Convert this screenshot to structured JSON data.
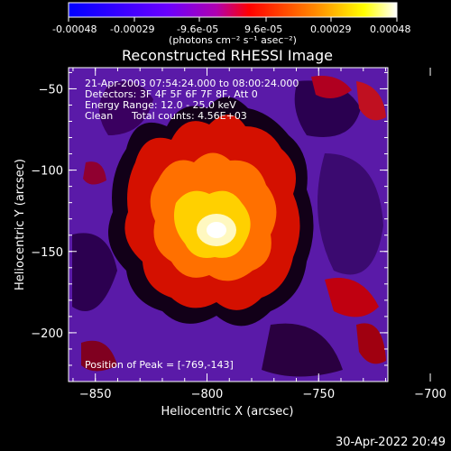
{
  "image": {
    "title": "Reconstructed RHESSI Image",
    "colorbar": {
      "ticks": [
        "-0.00048",
        "-0.00029",
        "-9.6e-05",
        "9.6e-05",
        "0.00029",
        "0.00048"
      ],
      "unit": "(photons cm⁻² s⁻¹ asec⁻²)",
      "colors": [
        "#0000ff",
        "#6a00ff",
        "#b000b0",
        "#ff0000",
        "#ff8800",
        "#ffff00",
        "#ffffff"
      ]
    },
    "info": {
      "time_range": "21-Apr-2003 07:54:24.000 to 08:00:24.000",
      "detectors": "Detectors: 3F 4F 5F 6F 7F 8F, Att 0",
      "energy": "Energy Range: 12.0 - 25.0 keV",
      "method": "Clean",
      "counts": "Total counts: 4.56E+03"
    },
    "peak_label": "Position of Peak = [-769,-143]",
    "x_axis": {
      "label": "Heliocentric X (arcsec)",
      "range": [
        -862,
        -719
      ],
      "ticks": [
        {
          "value": -850,
          "label": "−850"
        },
        {
          "value": -800,
          "label": "−800"
        },
        {
          "value": -750,
          "label": "−750"
        },
        {
          "value": -700,
          "label": "−700"
        }
      ]
    },
    "y_axis": {
      "label": "Heliocentric Y (arcsec)",
      "range": [
        -230,
        -37
      ],
      "ticks": [
        {
          "value": -50,
          "label": "−50"
        },
        {
          "value": -100,
          "label": "−100"
        },
        {
          "value": -150,
          "label": "−150"
        },
        {
          "value": -200,
          "label": "−200"
        }
      ]
    },
    "footer_timestamp": "30-Apr-2022 20:49"
  }
}
